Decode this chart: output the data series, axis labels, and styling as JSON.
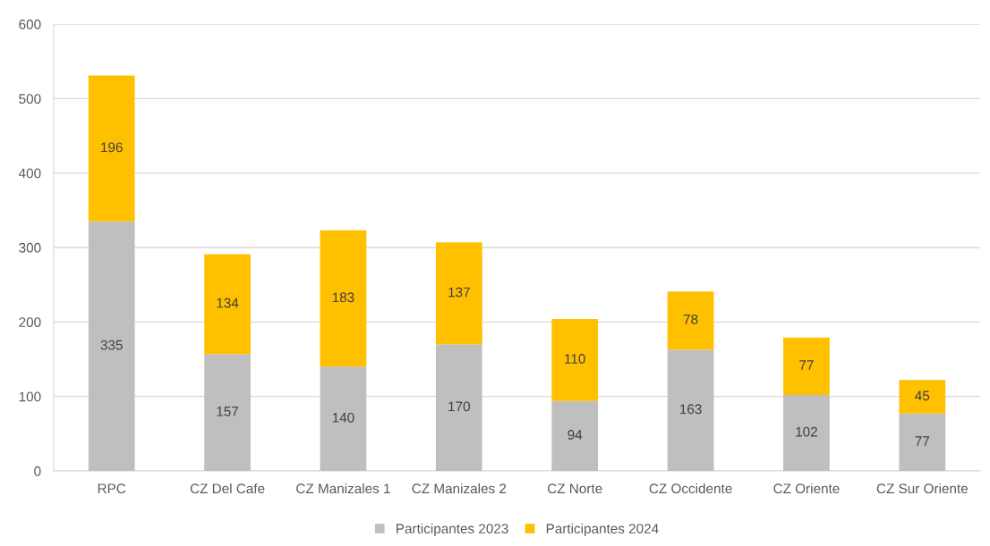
{
  "chart_data": {
    "type": "bar",
    "stacked": true,
    "categories": [
      "RPC",
      "CZ Del Cafe",
      "CZ Manizales 1",
      "CZ Manizales 2",
      "CZ Norte",
      "CZ Occidente",
      "CZ Oriente",
      "CZ Sur Oriente"
    ],
    "series": [
      {
        "name": "Participantes 2023",
        "color": "#bfbfbf",
        "values": [
          335,
          157,
          140,
          170,
          94,
          163,
          102,
          77
        ]
      },
      {
        "name": "Participantes 2024",
        "color": "#ffc000",
        "values": [
          196,
          134,
          183,
          137,
          110,
          78,
          77,
          45
        ]
      }
    ],
    "ylim": [
      0,
      600
    ],
    "yticks": [
      0,
      100,
      200,
      300,
      400,
      500,
      600
    ],
    "grid": "y",
    "legend": "bottom",
    "data_labels": true
  }
}
